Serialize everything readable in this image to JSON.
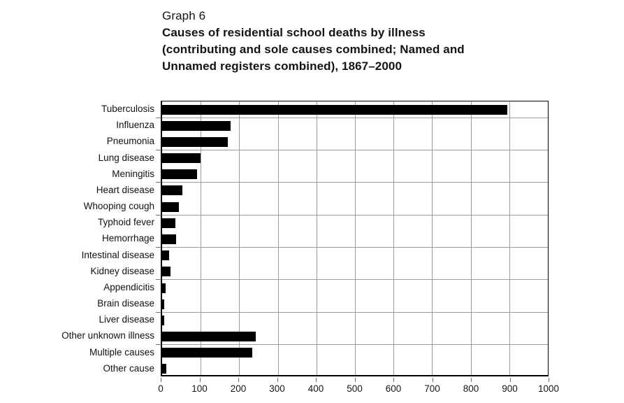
{
  "page": {
    "background": "#ffffff"
  },
  "title": {
    "kicker": "Graph 6",
    "lines": [
      "Causes of residential school deaths by illness",
      "(contributing and sole causes combined; Named and",
      "Unnamed registers combined), 1867–2000"
    ]
  },
  "chart_data": {
    "type": "bar",
    "orientation": "horizontal",
    "title": "Graph 6. Causes of residential school deaths by illness (contributing and sole causes combined; Named and Unnamed registers combined), 1867–2000",
    "categories": [
      "Tuberculosis",
      "Influenza",
      "Pneumonia",
      "Lung disease",
      "Meningitis",
      "Heart disease",
      "Whooping cough",
      "Typhoid fever",
      "Hemorrhage",
      "Intestinal disease",
      "Kidney disease",
      "Appendicitis",
      "Brain disease",
      "Liver disease",
      "Other unknown illness",
      "Multiple causes",
      "Other cause"
    ],
    "values": [
      895,
      178,
      170,
      100,
      90,
      53,
      44,
      35,
      36,
      19,
      21,
      9,
      6,
      5,
      243,
      233,
      10
    ],
    "xlabel": "",
    "ylabel": "",
    "xlim": [
      0,
      1000
    ],
    "x_ticks": [
      0,
      100,
      200,
      300,
      400,
      500,
      600,
      700,
      800,
      900,
      1000
    ],
    "grid": true,
    "legend": false,
    "bar_color": "#000000",
    "grid_color": "#9c9c9c",
    "axis_color": "#000000"
  }
}
